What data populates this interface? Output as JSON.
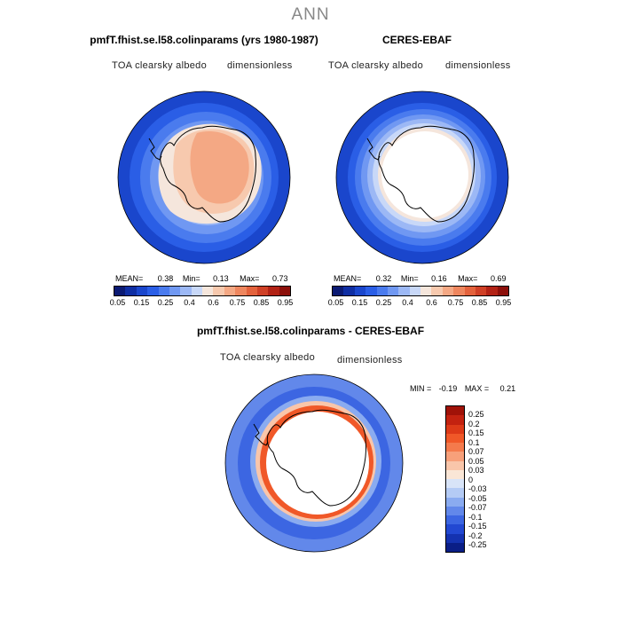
{
  "figure": {
    "title": "ANN"
  },
  "panels": [
    {
      "title": "pmfT.fhist.se.l58.colinparams (yrs 1980-1987)",
      "variable": "TOA clearsky albedo",
      "units": "dimensionless",
      "stats": {
        "mean_label": "MEAN=",
        "mean": "0.38",
        "min_label": "Min=",
        "min": "0.13",
        "max_label": "Max=",
        "max": "0.73"
      }
    },
    {
      "title": "CERES-EBAF",
      "variable": "TOA clearsky albedo",
      "units": "dimensionless",
      "stats": {
        "mean_label": "MEAN=",
        "mean": "0.32",
        "min_label": "Min=",
        "min": "0.16",
        "max_label": "Max=",
        "max": "0.69"
      }
    },
    {
      "title": "pmfT.fhist.se.l58.colinparams - CERES-EBAF",
      "variable": "TOA clearsky albedo",
      "units": "dimensionless",
      "stats": {
        "min_label": "MIN =",
        "min": "-0.19",
        "max_label": "MAX =",
        "max": "0.21"
      }
    }
  ],
  "colorbar_abs": {
    "colors": [
      "#0b1a73",
      "#0f2ea3",
      "#1a46cc",
      "#2a5ee6",
      "#4a7bee",
      "#7098f2",
      "#9cb8f5",
      "#c8d8f8",
      "#f5e6dc",
      "#f7c9ae",
      "#f4a884",
      "#ee865e",
      "#e3623c",
      "#cf4026",
      "#b22215",
      "#8c0f0a"
    ],
    "labels": [
      "0.05",
      "0.15",
      "0.25",
      "0.4",
      "0.6",
      "0.75",
      "0.85",
      "0.95"
    ]
  },
  "colorbar_diff": {
    "colors": [
      "#a01208",
      "#c32210",
      "#dd3a18",
      "#f05828",
      "#f47a4c",
      "#f7a07a",
      "#f9c6aa",
      "#fae6d6",
      "#d8e4f8",
      "#b4cbf5",
      "#8aabf0",
      "#6288ea",
      "#3c66e2",
      "#2248d2",
      "#1432b0",
      "#0a1e86"
    ],
    "labels": [
      "0.25",
      "0.2",
      "0.15",
      "0.1",
      "0.07",
      "0.05",
      "0.03",
      "0",
      "-0.03",
      "-0.05",
      "-0.07",
      "-0.1",
      "-0.15",
      "-0.2",
      "-0.25"
    ]
  },
  "chart_data": [
    {
      "type": "heatmap",
      "title": "pmfT.fhist.se.l58.colinparams (yrs 1980-1987)",
      "subtitle": "TOA clearsky albedo",
      "units": "dimensionless",
      "stats": {
        "mean": 0.38,
        "min": 0.13,
        "max": 0.73
      },
      "colorbar_levels": [
        0.05,
        0.15,
        0.25,
        0.4,
        0.6,
        0.75,
        0.85,
        0.95
      ]
    },
    {
      "type": "heatmap",
      "title": "CERES-EBAF",
      "subtitle": "TOA clearsky albedo",
      "units": "dimensionless",
      "stats": {
        "mean": 0.32,
        "min": 0.16,
        "max": 0.69
      },
      "colorbar_levels": [
        0.05,
        0.15,
        0.25,
        0.4,
        0.6,
        0.75,
        0.85,
        0.95
      ]
    },
    {
      "type": "heatmap",
      "title": "pmfT.fhist.se.l58.colinparams - CERES-EBAF",
      "subtitle": "TOA clearsky albedo",
      "units": "dimensionless",
      "stats": {
        "min": -0.19,
        "max": 0.21
      },
      "colorbar_levels": [
        0.25,
        0.2,
        0.15,
        0.1,
        0.07,
        0.05,
        0.03,
        0,
        -0.03,
        -0.05,
        -0.07,
        -0.1,
        -0.15,
        -0.2,
        -0.25
      ]
    }
  ]
}
